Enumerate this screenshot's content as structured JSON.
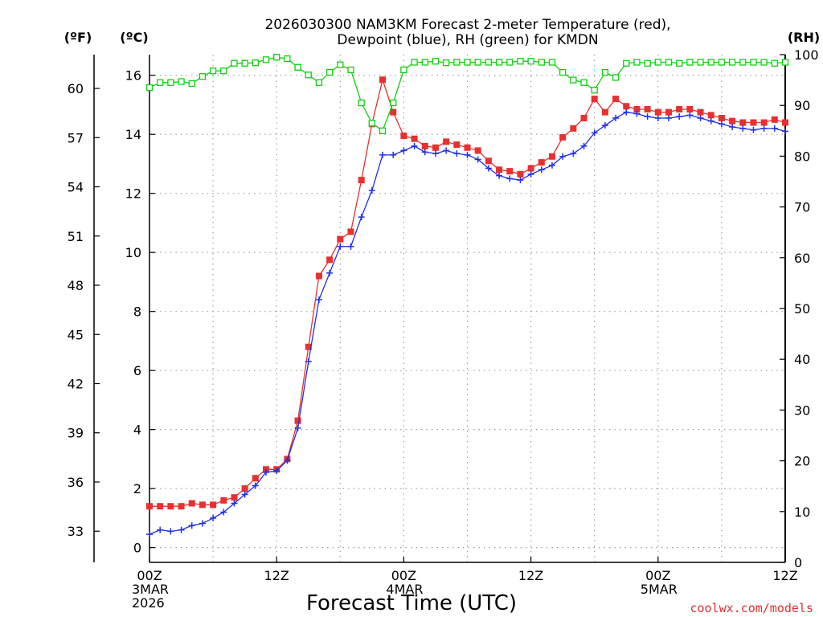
{
  "chart_data": {
    "type": "line",
    "title_line1": "2026030300 NAM3KM Forecast 2-meter Temperature (red),",
    "title_line2": "Dewpoint (blue), RH (green) for KMDN",
    "xlabel": "Forecast Time (UTC)",
    "credit": "coolwx.com/models",
    "units": {
      "fahrenheit": "(ºF)",
      "celsius": "(ºC)",
      "rh": "(RH)"
    },
    "x_ticks": [
      {
        "hour": 0,
        "lines": [
          "00Z",
          "3MAR",
          "2026"
        ]
      },
      {
        "hour": 12,
        "lines": [
          "12Z"
        ]
      },
      {
        "hour": 24,
        "lines": [
          "00Z",
          "4MAR"
        ]
      },
      {
        "hour": 36,
        "lines": [
          "12Z"
        ]
      },
      {
        "hour": 48,
        "lines": [
          "00Z",
          "5MAR"
        ]
      },
      {
        "hour": 60,
        "lines": [
          "12Z"
        ]
      }
    ],
    "x_range": [
      0,
      60
    ],
    "ylim_celsius": [
      -0.5,
      16.7
    ],
    "ylim_rh": [
      0,
      100
    ],
    "celsius_ticks": [
      0,
      2,
      4,
      6,
      8,
      10,
      12,
      14,
      16
    ],
    "fahrenheit_ticks": [
      33,
      36,
      39,
      42,
      45,
      48,
      51,
      54,
      57,
      60
    ],
    "rh_ticks": [
      0,
      10,
      20,
      30,
      40,
      50,
      60,
      70,
      80,
      90,
      100
    ],
    "grid": true,
    "colors": {
      "temperature": "#e83030",
      "dewpoint": "#2030e8",
      "rh": "#10d010",
      "grid": "#a0a0a0",
      "credit": "#e03030"
    },
    "x_step_hours": 1,
    "series": [
      {
        "name": "Temperature",
        "axis": "celsius",
        "values": [
          1.4,
          1.4,
          1.4,
          1.4,
          1.5,
          1.45,
          1.45,
          1.6,
          1.7,
          2.0,
          2.35,
          2.65,
          2.65,
          3.0,
          4.3,
          6.8,
          9.2,
          9.75,
          10.45,
          10.7,
          12.45,
          14.35,
          15.85,
          14.75,
          13.95,
          13.85,
          13.6,
          13.55,
          13.75,
          13.65,
          13.55,
          13.45,
          13.1,
          12.8,
          12.75,
          12.65,
          12.85,
          13.05,
          13.25,
          13.9,
          14.2,
          14.55,
          15.2,
          14.75,
          15.2,
          14.95,
          14.85,
          14.85,
          14.75,
          14.75,
          14.85,
          14.85,
          14.75,
          14.65,
          14.55,
          14.45,
          14.4,
          14.4,
          14.4,
          14.5,
          14.4
        ]
      },
      {
        "name": "Dewpoint",
        "axis": "celsius",
        "values": [
          0.45,
          0.6,
          0.55,
          0.6,
          0.75,
          0.82,
          1.0,
          1.2,
          1.5,
          1.8,
          2.1,
          2.55,
          2.6,
          2.95,
          4.05,
          6.3,
          8.4,
          9.3,
          10.2,
          10.2,
          11.2,
          12.1,
          13.3,
          13.3,
          13.45,
          13.6,
          13.4,
          13.35,
          13.45,
          13.35,
          13.3,
          13.15,
          12.85,
          12.6,
          12.5,
          12.45,
          12.65,
          12.8,
          12.95,
          13.25,
          13.35,
          13.6,
          14.05,
          14.3,
          14.55,
          14.75,
          14.7,
          14.6,
          14.55,
          14.55,
          14.6,
          14.65,
          14.55,
          14.45,
          14.35,
          14.25,
          14.2,
          14.15,
          14.2,
          14.2,
          14.1
        ]
      },
      {
        "name": "RH",
        "axis": "rh",
        "values": [
          93.5,
          94.5,
          94.5,
          94.7,
          94.3,
          95.7,
          96.8,
          96.8,
          98.3,
          98.3,
          98.4,
          99,
          99.5,
          99.2,
          97.5,
          96,
          94.5,
          96.5,
          98,
          97,
          90.5,
          86.5,
          85,
          90.5,
          97,
          98.5,
          98.5,
          98.7,
          98.4,
          98.5,
          98.5,
          98.5,
          98.5,
          98.5,
          98.5,
          98.7,
          98.7,
          98.5,
          98.5,
          96.5,
          95,
          94.5,
          93,
          96.5,
          95.5,
          98.3,
          98.5,
          98.3,
          98.5,
          98.5,
          98.3,
          98.5,
          98.5,
          98.5,
          98.5,
          98.5,
          98.5,
          98.5,
          98.5,
          98.3,
          98.5
        ]
      }
    ]
  }
}
